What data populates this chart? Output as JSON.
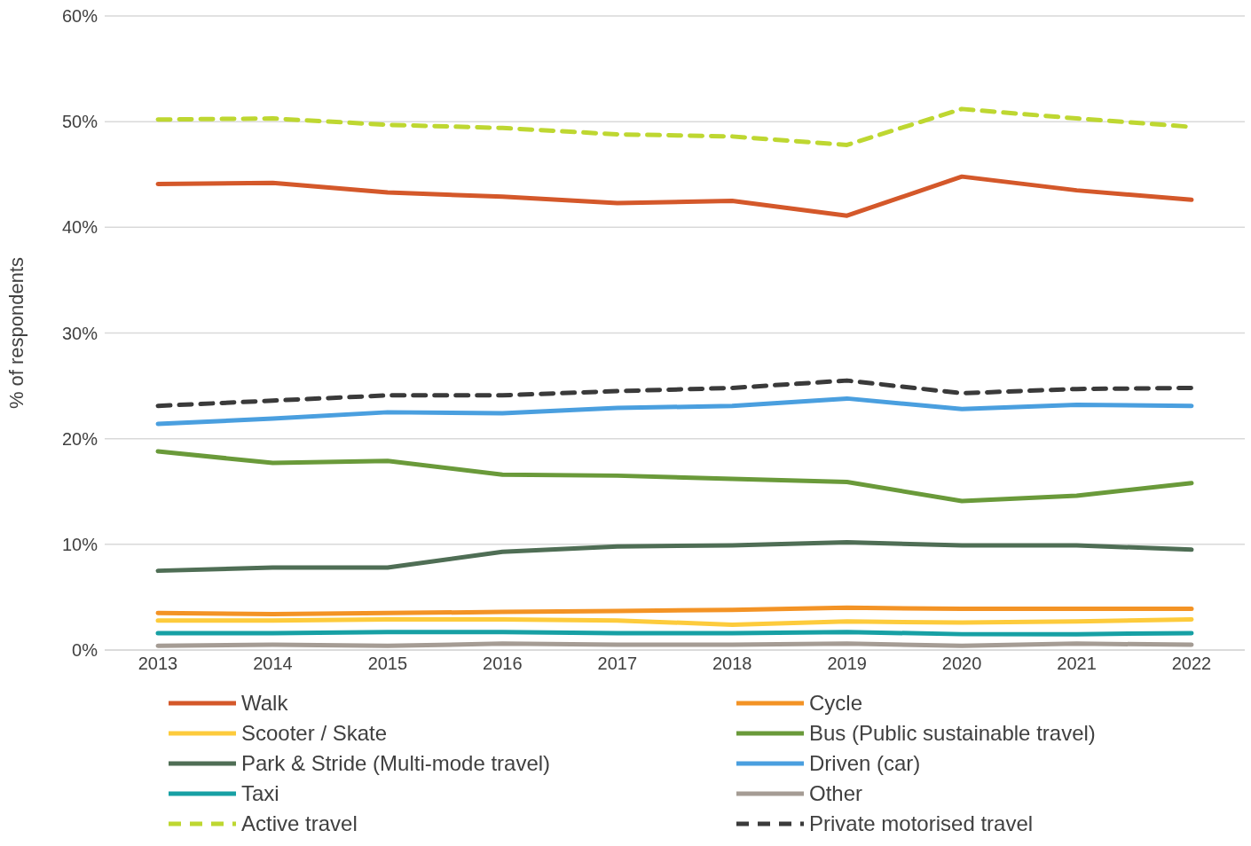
{
  "chart_data": {
    "type": "line",
    "ylabel": "% of respondents",
    "categories": [
      "2013",
      "2014",
      "2015",
      "2016",
      "2017",
      "2018",
      "2019",
      "2020",
      "2021",
      "2022"
    ],
    "ylim": [
      0,
      60
    ],
    "yticks": [
      {
        "value": 0,
        "label": "0%"
      },
      {
        "value": 10,
        "label": "10%"
      },
      {
        "value": 20,
        "label": "20%"
      },
      {
        "value": 30,
        "label": "30%"
      },
      {
        "value": 40,
        "label": "40%"
      },
      {
        "value": 50,
        "label": "50%"
      },
      {
        "value": 60,
        "label": "60%"
      }
    ],
    "grid": "y",
    "legend": "bottom",
    "marker": "none",
    "series": [
      {
        "name": "Walk",
        "color": "#d4582a",
        "values": [
          44.1,
          44.2,
          43.3,
          42.9,
          42.3,
          42.5,
          41.1,
          44.8,
          43.5,
          42.6
        ]
      },
      {
        "name": "Cycle",
        "color": "#f39325",
        "values": [
          3.5,
          3.4,
          3.5,
          3.6,
          3.7,
          3.8,
          4.0,
          3.9,
          3.9,
          3.9
        ]
      },
      {
        "name": "Scooter / Skate",
        "color": "#fdcb3c",
        "values": [
          2.8,
          2.8,
          2.9,
          2.9,
          2.8,
          2.4,
          2.7,
          2.6,
          2.7,
          2.9
        ]
      },
      {
        "name": "Bus (Public sustainable travel)",
        "color": "#6a9a3a",
        "values": [
          18.8,
          17.7,
          17.9,
          16.6,
          16.5,
          16.2,
          15.9,
          14.1,
          14.6,
          15.8
        ]
      },
      {
        "name": "Park & Stride (Multi-mode travel)",
        "color": "#4f6e55",
        "values": [
          7.5,
          7.8,
          7.8,
          9.3,
          9.8,
          9.9,
          10.2,
          9.9,
          9.9,
          9.5
        ]
      },
      {
        "name": "Driven (car)",
        "color": "#4a9fdf",
        "values": [
          21.4,
          21.9,
          22.5,
          22.4,
          22.9,
          23.1,
          23.8,
          22.8,
          23.2,
          23.1
        ]
      },
      {
        "name": "Taxi",
        "color": "#17a0a4",
        "values": [
          1.6,
          1.6,
          1.7,
          1.7,
          1.6,
          1.6,
          1.7,
          1.5,
          1.5,
          1.6
        ]
      },
      {
        "name": "Other",
        "color": "#a59c94",
        "values": [
          0.4,
          0.5,
          0.4,
          0.6,
          0.5,
          0.5,
          0.6,
          0.4,
          0.6,
          0.5
        ]
      },
      {
        "name": "Active travel",
        "color": "#bed731",
        "line_style": "dashed",
        "values": [
          50.2,
          50.3,
          49.7,
          49.4,
          48.8,
          48.6,
          47.8,
          51.2,
          50.3,
          49.5
        ]
      },
      {
        "name": "Private motorised travel",
        "color": "#3a3a3a",
        "line_style": "dashed",
        "values": [
          23.1,
          23.6,
          24.1,
          24.1,
          24.5,
          24.8,
          25.5,
          24.3,
          24.7,
          24.8
        ]
      }
    ]
  }
}
